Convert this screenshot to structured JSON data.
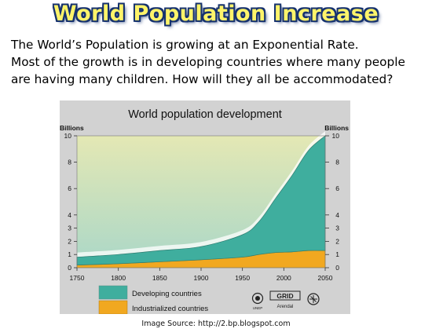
{
  "slide": {
    "title": "World Population Increase",
    "lines": [
      "The World’s Population is growing at an Exponential Rate.",
      "Most of the growth is in developing countries where many people",
      "are having many children. How will they all be accommodated?"
    ],
    "source": "Image Source: http://2.bp.blogspot.com"
  },
  "colors": {
    "developing": "#3fae9e",
    "industrialized": "#f1a820",
    "plot_bg_top": "#e4e8b4",
    "plot_bg_bottom": "#aad7c8",
    "frame_bg": "#d2d2d2"
  },
  "chart_data": {
    "type": "area",
    "stacked": true,
    "title": "World population development",
    "ylabel_left": "Billions",
    "ylabel_right": "Billions",
    "xlim": [
      1750,
      2050
    ],
    "ylim": [
      0,
      10
    ],
    "x": [
      1750,
      1800,
      1850,
      1900,
      1950,
      1970,
      1990,
      2010,
      2030,
      2050
    ],
    "series": [
      {
        "name": "Industrialized countries",
        "values": [
          0.2,
          0.3,
          0.45,
          0.6,
          0.8,
          1.0,
          1.15,
          1.2,
          1.3,
          1.3
        ],
        "color": "#f1a820"
      },
      {
        "name": "Developing countries",
        "values": [
          0.6,
          0.7,
          0.85,
          1.0,
          1.7,
          2.5,
          4.1,
          5.8,
          7.6,
          8.7
        ],
        "color": "#3fae9e"
      }
    ],
    "x_ticks": [
      1750,
      1800,
      1850,
      1900,
      1950,
      2000,
      2050
    ],
    "y_ticks_left": [
      0,
      1,
      2,
      3,
      4,
      6,
      8,
      10
    ],
    "y_ticks_right": [
      0,
      1,
      2,
      3,
      4,
      6,
      8,
      10
    ],
    "legend": {
      "placement": "bottom",
      "entries": [
        "Developing countries",
        "Industrialized countries"
      ]
    },
    "logos": [
      "UNEP",
      "GRID Arendal",
      "UN"
    ]
  }
}
